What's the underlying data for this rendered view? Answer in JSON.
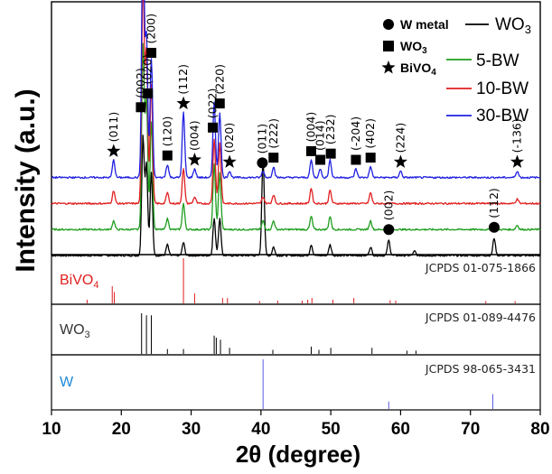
{
  "chart_data": {
    "type": "line",
    "xlabel": "2θ (degree)",
    "ylabel": "Intensity (a.u.)",
    "xlim": [
      10,
      80
    ],
    "xticks": [
      10,
      20,
      30,
      40,
      50,
      60,
      70,
      80
    ],
    "grid": false,
    "legend_position": "top-right",
    "series": [
      {
        "name": "WO₃",
        "color": "#000000",
        "offset": 0.0,
        "peaks": [
          [
            23.1,
            0.55
          ],
          [
            23.6,
            0.42
          ],
          [
            24.3,
            0.38
          ],
          [
            26.6,
            0.05
          ],
          [
            28.9,
            0.06
          ],
          [
            33.3,
            0.17
          ],
          [
            34.1,
            0.17
          ],
          [
            40.3,
            0.45
          ],
          [
            41.8,
            0.04
          ],
          [
            47.2,
            0.05
          ],
          [
            49.9,
            0.05
          ],
          [
            55.7,
            0.04
          ],
          [
            58.3,
            0.07
          ],
          [
            62.0,
            0.02
          ],
          [
            73.4,
            0.08
          ]
        ]
      },
      {
        "name": "5-BW",
        "color": "#1e9e1e",
        "offset": 0.12,
        "peaks": [
          [
            18.9,
            0.04
          ],
          [
            23.1,
            0.85
          ],
          [
            23.6,
            0.6
          ],
          [
            24.3,
            0.5
          ],
          [
            26.6,
            0.05
          ],
          [
            28.9,
            0.12
          ],
          [
            33.3,
            0.3
          ],
          [
            34.1,
            0.26
          ],
          [
            40.3,
            0.04
          ],
          [
            41.8,
            0.04
          ],
          [
            47.2,
            0.06
          ],
          [
            49.9,
            0.06
          ],
          [
            55.7,
            0.04
          ],
          [
            76.7,
            0.02
          ]
        ]
      },
      {
        "name": "10-BW",
        "color": "#e02020",
        "offset": 0.24,
        "peaks": [
          [
            18.9,
            0.06
          ],
          [
            23.1,
            1.05
          ],
          [
            23.6,
            0.7
          ],
          [
            24.3,
            0.55
          ],
          [
            26.6,
            0.05
          ],
          [
            28.9,
            0.16
          ],
          [
            30.5,
            0.03
          ],
          [
            33.3,
            0.3
          ],
          [
            34.1,
            0.28
          ],
          [
            40.3,
            0.03
          ],
          [
            41.8,
            0.04
          ],
          [
            47.2,
            0.07
          ],
          [
            49.9,
            0.06
          ],
          [
            55.7,
            0.05
          ],
          [
            76.7,
            0.02
          ]
        ]
      },
      {
        "name": "30-BW",
        "color": "#2020e0",
        "offset": 0.36,
        "peaks": [
          [
            18.9,
            0.08
          ],
          [
            23.1,
            1.2
          ],
          [
            23.6,
            0.65
          ],
          [
            24.3,
            0.55
          ],
          [
            26.6,
            0.06
          ],
          [
            28.9,
            0.3
          ],
          [
            30.5,
            0.04
          ],
          [
            33.3,
            0.35
          ],
          [
            34.1,
            0.3
          ],
          [
            35.5,
            0.03
          ],
          [
            40.3,
            0.03
          ],
          [
            41.8,
            0.05
          ],
          [
            47.2,
            0.08
          ],
          [
            48.5,
            0.04
          ],
          [
            49.9,
            0.08
          ],
          [
            53.6,
            0.04
          ],
          [
            55.7,
            0.05
          ],
          [
            60.0,
            0.03
          ],
          [
            76.7,
            0.03
          ]
        ]
      }
    ],
    "markers": [
      {
        "symbol": "star",
        "x": 18.9,
        "label": "(011)",
        "trace": "30-BW"
      },
      {
        "symbol": "square",
        "x": 22.8,
        "label": "(002)",
        "trace": "30-BW"
      },
      {
        "symbol": "square",
        "x": 23.8,
        "label": "(020)",
        "trace": "30-BW"
      },
      {
        "symbol": "square",
        "x": 24.3,
        "label": "(200)",
        "trace": "30-BW"
      },
      {
        "symbol": "square",
        "x": 26.6,
        "label": "(120)",
        "trace": "30-BW"
      },
      {
        "symbol": "star",
        "x": 28.9,
        "label": "(112)",
        "trace": "30-BW"
      },
      {
        "symbol": "star",
        "x": 30.5,
        "label": "(004)",
        "trace": "30-BW"
      },
      {
        "symbol": "square",
        "x": 33.1,
        "label": "(022)",
        "trace": "30-BW"
      },
      {
        "symbol": "square",
        "x": 34.1,
        "label": "(220)",
        "trace": "30-BW"
      },
      {
        "symbol": "star",
        "x": 35.5,
        "label": "(020)",
        "trace": "30-BW"
      },
      {
        "symbol": "circle",
        "x": 40.2,
        "label": "(011)",
        "trace": "30-BW"
      },
      {
        "symbol": "square",
        "x": 41.8,
        "label": "(222)",
        "trace": "30-BW"
      },
      {
        "symbol": "square",
        "x": 47.2,
        "label": "(004)",
        "trace": "30-BW"
      },
      {
        "symbol": "square",
        "x": 48.5,
        "label": "(014)",
        "trace": "30-BW"
      },
      {
        "symbol": "square",
        "x": 50.0,
        "label": "(232)",
        "trace": "30-BW"
      },
      {
        "symbol": "square",
        "x": 53.6,
        "label": "(-204)",
        "trace": "30-BW"
      },
      {
        "symbol": "square",
        "x": 55.7,
        "label": "(402)",
        "trace": "30-BW"
      },
      {
        "symbol": "star",
        "x": 60.0,
        "label": "(224)",
        "trace": "30-BW"
      },
      {
        "symbol": "star",
        "x": 76.7,
        "label": "(-136)",
        "trace": "30-BW"
      },
      {
        "symbol": "circle",
        "x": 58.3,
        "label": "(002)",
        "trace": "WO₃"
      },
      {
        "symbol": "circle",
        "x": 73.4,
        "label": "(112)",
        "trace": "WO₃"
      }
    ],
    "marker_legend": [
      {
        "symbol": "circle",
        "label": "W metal"
      },
      {
        "symbol": "square",
        "label": "WO₃"
      },
      {
        "symbol": "star",
        "label": "BiVO₄"
      }
    ],
    "reference_panels": [
      {
        "name": "BiVO₄",
        "jcpds": "JCPDS 01-075-1866",
        "color": "#e02020",
        "lines": [
          [
            15.1,
            0.08
          ],
          [
            18.7,
            0.38
          ],
          [
            19.0,
            0.25
          ],
          [
            28.9,
            1.0
          ],
          [
            30.5,
            0.22
          ],
          [
            34.5,
            0.12
          ],
          [
            35.2,
            0.12
          ],
          [
            39.8,
            0.05
          ],
          [
            42.4,
            0.06
          ],
          [
            45.9,
            0.06
          ],
          [
            46.7,
            0.08
          ],
          [
            47.3,
            0.12
          ],
          [
            50.3,
            0.08
          ],
          [
            53.3,
            0.12
          ],
          [
            58.5,
            0.07
          ],
          [
            59.3,
            0.06
          ],
          [
            72.2,
            0.05
          ],
          [
            76.4,
            0.05
          ]
        ]
      },
      {
        "name": "WO₃",
        "jcpds": "JCPDS 01-089-4476",
        "color": "#000000",
        "lines": [
          [
            22.9,
            1.0
          ],
          [
            23.6,
            0.95
          ],
          [
            24.3,
            0.95
          ],
          [
            26.6,
            0.12
          ],
          [
            28.9,
            0.12
          ],
          [
            33.3,
            0.45
          ],
          [
            33.6,
            0.4
          ],
          [
            34.2,
            0.35
          ],
          [
            35.5,
            0.15
          ],
          [
            41.7,
            0.1
          ],
          [
            47.2,
            0.18
          ],
          [
            48.3,
            0.1
          ],
          [
            50.0,
            0.15
          ],
          [
            55.9,
            0.15
          ],
          [
            60.9,
            0.08
          ],
          [
            62.2,
            0.08
          ]
        ]
      },
      {
        "name": "W",
        "jcpds": "JCPDS 98-065-3431",
        "color": "#5a5ae6",
        "lines": [
          [
            40.3,
            1.0
          ],
          [
            58.3,
            0.15
          ],
          [
            73.2,
            0.3
          ]
        ]
      }
    ]
  }
}
